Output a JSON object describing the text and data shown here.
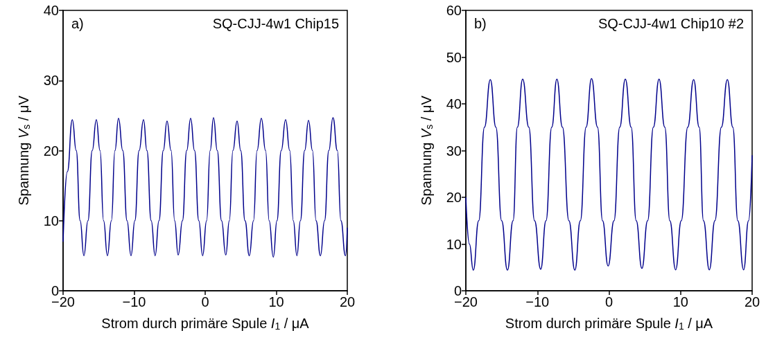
{
  "chart_data": [
    {
      "type": "line",
      "xlabel": "Strom durch primäre Spule I$_{1}$ / μA",
      "ylabel": "Spannung V$_{s}$ / μV",
      "annotations": [
        "a)",
        "SQ-CJJ-4w1 Chip15"
      ],
      "xlim": [
        -20,
        20
      ],
      "xticks": [
        -20,
        -10,
        0,
        10,
        20
      ],
      "ylim": [
        0,
        40
      ],
      "yticks": [
        0,
        10,
        20,
        30,
        40
      ],
      "grid": false,
      "marker": "none",
      "line_style": "solid",
      "series": [
        {
          "color": "#00008b",
          "x": [
            -20,
            -19.4,
            -18.7,
            -18.15,
            -17.6,
            -17.07,
            -16.5,
            -15.9,
            -15.32,
            -14.8,
            -14.3,
            -13.76,
            -13.2,
            -12.7,
            -12.2,
            -11.6,
            -11.0,
            -10.44,
            -9.9,
            -9.3,
            -8.68,
            -8.2,
            -7.6,
            -7.05,
            -6.5,
            -5.9,
            -5.37,
            -4.8,
            -4.3,
            -3.8,
            -3.2,
            -2.6,
            -2.05,
            -1.5,
            -0.9,
            -0.36,
            0.2,
            0.7,
            1.17,
            1.7,
            2.3,
            2.9,
            3.4,
            3.9,
            4.49,
            5.0,
            5.6,
            6.21,
            6.8,
            7.3,
            7.9,
            8.5,
            9.0,
            9.59,
            10.1,
            10.7,
            11.32,
            11.9,
            12.4,
            12.91,
            13.4,
            14.0,
            14.54,
            15.1,
            15.6,
            16.22,
            16.8,
            17.4,
            17.98,
            18.6,
            19.1,
            19.74,
            20
          ],
          "values": [
            7,
            17,
            24.4,
            20,
            10,
            5.0,
            10,
            20,
            24.4,
            20,
            10,
            5.0,
            10,
            20,
            24.6,
            20,
            10,
            5.0,
            10,
            20,
            24.4,
            20,
            10,
            5.0,
            10,
            20,
            24.2,
            20,
            10,
            5.1,
            10,
            20,
            24.6,
            20,
            10,
            5.0,
            10,
            20,
            24.7,
            20,
            10,
            5.1,
            10,
            20,
            24.2,
            20,
            10,
            5.0,
            10,
            20,
            24.6,
            20,
            10,
            4.8,
            10,
            20,
            24.4,
            20,
            10,
            5.0,
            10,
            20,
            24.3,
            20,
            10,
            5.0,
            10,
            20,
            24.7,
            20,
            10,
            5.0,
            9
          ]
        }
      ]
    },
    {
      "type": "line",
      "xlabel": "Strom durch primäre Spule I$_{1}$ / μA",
      "ylabel": "Spannung V$_{s}$ / μV",
      "annotations": [
        "b)",
        "SQ-CJJ-4w1 Chip10 #2"
      ],
      "xlim": [
        -20,
        20
      ],
      "xticks": [
        -20,
        -10,
        0,
        10,
        20
      ],
      "ylim": [
        0,
        60
      ],
      "yticks": [
        0,
        10,
        20,
        30,
        40,
        50,
        60
      ],
      "grid": false,
      "marker": "none",
      "line_style": "solid",
      "series": [
        {
          "color": "#00008b",
          "x": [
            -20,
            -19.5,
            -18.96,
            -18.2,
            -17.4,
            -16.58,
            -15.8,
            -15.0,
            -14.19,
            -13.4,
            -12.8,
            -12.06,
            -11.2,
            -10.4,
            -9.54,
            -8.8,
            -8.0,
            -7.28,
            -6.5,
            -5.6,
            -4.77,
            -4.0,
            -3.2,
            -2.44,
            -1.6,
            -0.9,
            -0.12,
            0.7,
            1.5,
            2.28,
            3.1,
            3.8,
            4.6,
            5.4,
            6.2,
            6.99,
            7.8,
            8.5,
            9.31,
            10.1,
            11.0,
            11.83,
            12.6,
            13.2,
            14.02,
            14.8,
            15.7,
            16.54,
            17.3,
            18.0,
            18.81,
            19.5,
            20
          ],
          "values": [
            20,
            10,
            4.4,
            15,
            35,
            45.2,
            35,
            15,
            4.4,
            15,
            35,
            45.3,
            35,
            15,
            4.6,
            15,
            35,
            45.3,
            35,
            15,
            4.4,
            15,
            35,
            45.4,
            35,
            15,
            5.3,
            15,
            35,
            45.3,
            35,
            15,
            4.8,
            15,
            35,
            45.3,
            35,
            15,
            4.5,
            15,
            35,
            45.2,
            35,
            15,
            4.5,
            15,
            35,
            45.2,
            35,
            15,
            4.5,
            15,
            29
          ]
        }
      ]
    }
  ]
}
